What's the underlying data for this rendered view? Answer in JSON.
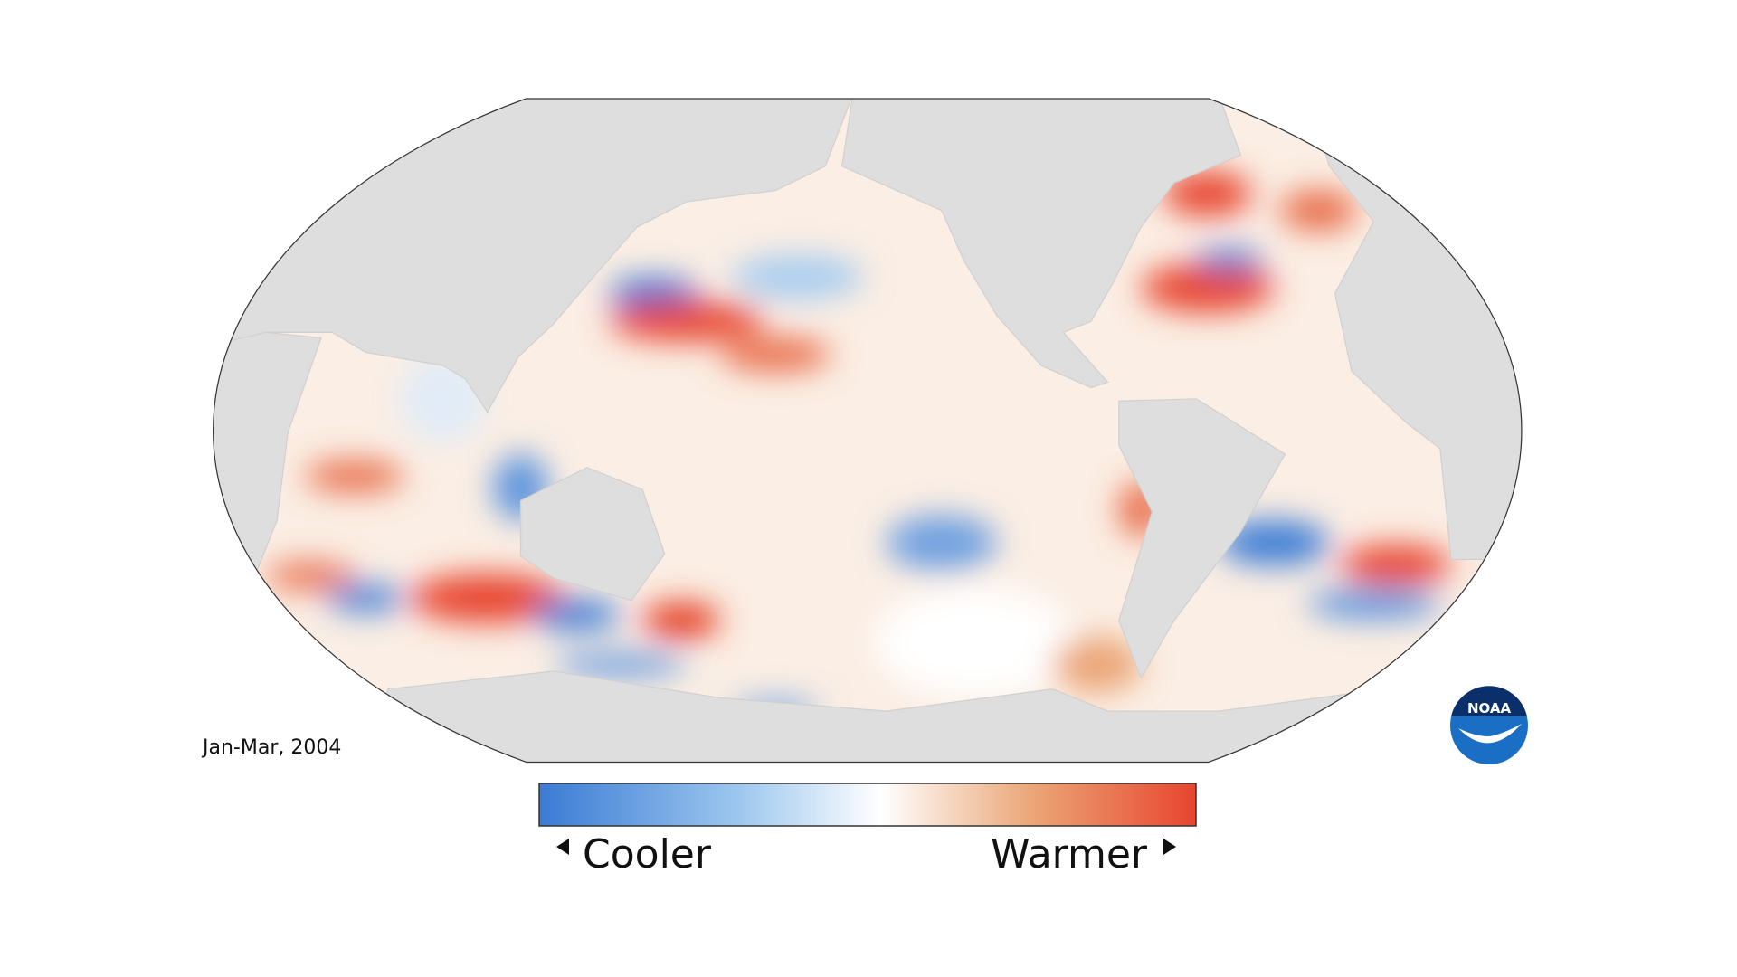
{
  "date_label": "Jan-Mar, 2004",
  "legend": {
    "low": "Cooler",
    "high": "Warmer"
  },
  "logo": "NOAA"
}
